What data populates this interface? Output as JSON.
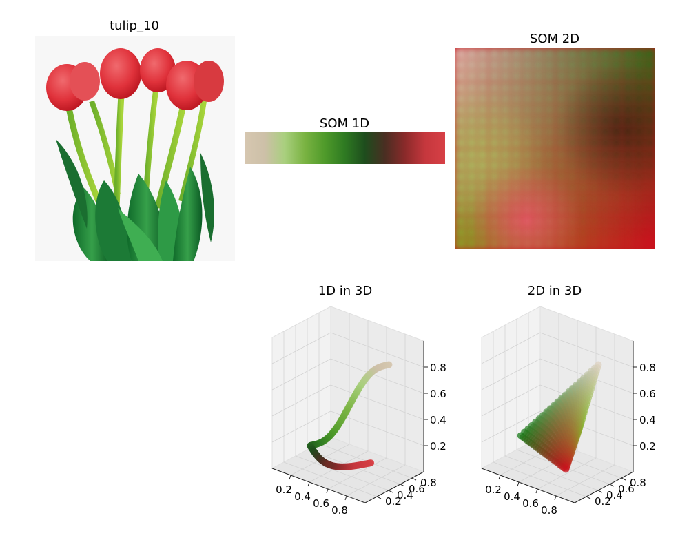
{
  "figure": {
    "photo_title": "tulip_10",
    "som1d_title": "SOM 1D",
    "som2d_title": "SOM 2D",
    "plot1d_title": "1D in 3D",
    "plot2d_title": "2D in 3D"
  },
  "chart_data": [
    {
      "type": "heatmap",
      "title": "SOM 1D",
      "colormap_stops": [
        "#d6c7b0",
        "#cdc0a8",
        "#a9cf7e",
        "#7ab342",
        "#4f9a2a",
        "#2e7a22",
        "#1e4d1d",
        "#4a2e22",
        "#8a2a2a",
        "#c5373d",
        "#d74046"
      ]
    },
    {
      "type": "heatmap",
      "title": "SOM 2D",
      "corner_colors": {
        "top-left": "#ddd1c2",
        "top-right": "#1a7a1a",
        "bottom-left": "#82b82a",
        "bottom-right": "#c8141e"
      }
    },
    {
      "type": "scatter",
      "title": "1D in 3D",
      "axes": {
        "x_ticks": [
          "0.2",
          "0.4",
          "0.6",
          "0.8"
        ],
        "y_ticks": [
          "0.2",
          "0.4",
          "0.6",
          "0.8"
        ],
        "z_ticks": [
          "0.2",
          "0.4",
          "0.6",
          "0.8"
        ]
      },
      "grid": true
    },
    {
      "type": "scatter",
      "title": "2D in 3D",
      "axes": {
        "x_ticks": [
          "0.2",
          "0.4",
          "0.6",
          "0.8"
        ],
        "y_ticks": [
          "0.2",
          "0.4",
          "0.6",
          "0.8"
        ],
        "z_ticks": [
          "0.2",
          "0.4",
          "0.6",
          "0.8"
        ]
      },
      "grid": true
    }
  ]
}
